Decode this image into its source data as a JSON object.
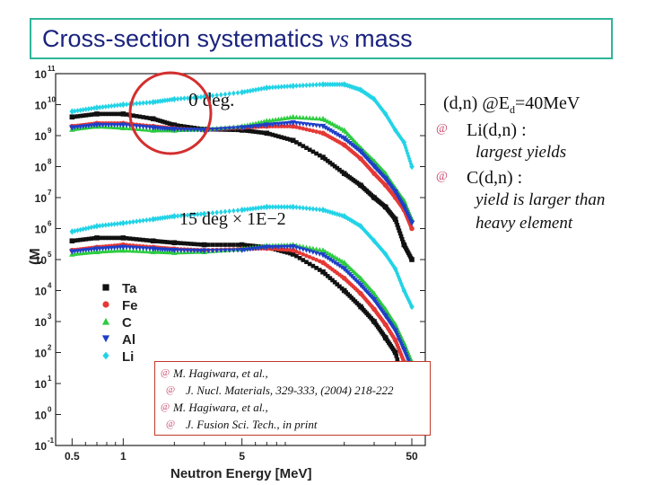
{
  "title": {
    "main": "Cross-section systematics",
    "vs": "vs",
    "tail": "mass"
  },
  "chart_data": {
    "type": "scatter",
    "xlabel": "Neutron Energy [MeV]",
    "ylabel": "(M",
    "x_scale": "log",
    "y_scale": "log",
    "xlim": [
      0.4,
      60
    ],
    "ylim": [
      0.1,
      100000000000
    ],
    "x_ticks": [
      {
        "value": 0.5,
        "label": "0.5"
      },
      {
        "value": 1,
        "label": "1"
      },
      {
        "value": 5,
        "label": "5"
      },
      {
        "value": 50,
        "label": "50"
      }
    ],
    "y_ticks": [
      {
        "exp": -1,
        "label": "10"
      },
      {
        "exp": 0,
        "label": "10"
      },
      {
        "exp": 1,
        "label": "10"
      },
      {
        "exp": 2,
        "label": "10"
      },
      {
        "exp": 3,
        "label": "10"
      },
      {
        "exp": 4,
        "label": "10"
      },
      {
        "exp": 5,
        "label": "10"
      },
      {
        "exp": 6,
        "label": "10"
      },
      {
        "exp": 7,
        "label": "10"
      },
      {
        "exp": 8,
        "label": "10"
      },
      {
        "exp": 9,
        "label": "10"
      },
      {
        "exp": 10,
        "label": "10"
      },
      {
        "exp": 11,
        "label": "10"
      }
    ],
    "annotations": [
      "0 deg.",
      "15 deg × 1E−2"
    ],
    "legend_position": "bottom-left",
    "series": [
      {
        "name": "Ta",
        "group": "0 deg.",
        "color": "#111111",
        "marker": "square",
        "x": [
          0.5,
          0.7,
          1.0,
          1.5,
          2.0,
          3.0,
          5.0,
          7.0,
          10,
          15,
          20,
          25,
          30,
          35,
          40,
          45,
          50
        ],
        "y": [
          4000000000.0,
          5000000000.0,
          5000000000.0,
          3500000000.0,
          2200000000.0,
          1600000000.0,
          1500000000.0,
          1200000000.0,
          700000000.0,
          200000000.0,
          60000000.0,
          25000000.0,
          10000000.0,
          5000000.0,
          2000000.0,
          300000.0,
          100000.0
        ]
      },
      {
        "name": "Fe",
        "group": "0 deg.",
        "color": "#e53935",
        "marker": "circle",
        "x": [
          0.5,
          0.7,
          1.0,
          1.5,
          2.0,
          3.0,
          5.0,
          7.0,
          10,
          15,
          20,
          25,
          30,
          35,
          40,
          45,
          50
        ],
        "y": [
          2000000000.0,
          2500000000.0,
          2500000000.0,
          2000000000.0,
          1700000000.0,
          1500000000.0,
          1800000000.0,
          2000000000.0,
          2000000000.0,
          1200000000.0,
          500000000.0,
          180000000.0,
          60000000.0,
          25000000.0,
          10000000.0,
          4000000.0,
          1000000.0
        ]
      },
      {
        "name": "C",
        "group": "0 deg.",
        "color": "#2ecc40",
        "marker": "triangle",
        "x": [
          0.5,
          0.7,
          1.0,
          1.5,
          2.0,
          3.0,
          5.0,
          7.0,
          10,
          15,
          20,
          25,
          30,
          35,
          40,
          45,
          50
        ],
        "y": [
          1600000000.0,
          2000000000.0,
          1800000000.0,
          1500000000.0,
          1500000000.0,
          1600000000.0,
          2000000000.0,
          3000000000.0,
          4000000000.0,
          3500000000.0,
          1500000000.0,
          400000000.0,
          150000000.0,
          60000000.0,
          20000000.0,
          8000000.0,
          2000000.0
        ]
      },
      {
        "name": "Al",
        "group": "0 deg.",
        "color": "#1e3fc8",
        "marker": "triangle-down",
        "x": [
          0.5,
          0.7,
          1.0,
          1.5,
          2.0,
          3.0,
          5.0,
          7.0,
          10,
          15,
          20,
          25,
          30,
          35,
          40,
          45,
          50
        ],
        "y": [
          1800000000.0,
          2200000000.0,
          2200000000.0,
          1800000000.0,
          1600000000.0,
          1500000000.0,
          1800000000.0,
          2200000000.0,
          2600000000.0,
          2000000000.0,
          800000000.0,
          300000000.0,
          100000000.0,
          40000000.0,
          15000000.0,
          5000000.0,
          1500000.0
        ]
      },
      {
        "name": "Li",
        "group": "0 deg.",
        "color": "#22d3e6",
        "marker": "diamond",
        "x": [
          0.5,
          0.7,
          1.0,
          1.5,
          2.0,
          3.0,
          5.0,
          7.0,
          10,
          15,
          20,
          25,
          30,
          35,
          40,
          45,
          50
        ],
        "y": [
          6000000000.0,
          8000000000.0,
          10000000000.0,
          12000000000.0,
          15000000000.0,
          18000000000.0,
          25000000000.0,
          35000000000.0,
          40000000000.0,
          45000000000.0,
          45000000000.0,
          30000000000.0,
          15000000000.0,
          5000000000.0,
          1500000000.0,
          600000000.0,
          100000000.0
        ]
      },
      {
        "name": "Ta",
        "group": "15 deg × 1E−2",
        "color": "#111111",
        "marker": "square",
        "x": [
          0.5,
          0.7,
          1.0,
          1.5,
          2.0,
          3.0,
          5.0,
          7.0,
          10,
          15,
          20,
          25,
          30,
          35,
          40,
          45,
          50
        ],
        "y": [
          400000.0,
          500000.0,
          500000.0,
          400000.0,
          350000.0,
          300000.0,
          300000.0,
          250000.0,
          150000.0,
          40000.0,
          10000.0,
          3000.0,
          1000.0,
          300.0,
          100.0,
          10.0,
          1.0
        ]
      },
      {
        "name": "Fe",
        "group": "15 deg × 1E−2",
        "color": "#e53935",
        "marker": "circle",
        "x": [
          0.5,
          0.7,
          1.0,
          1.5,
          2.0,
          3.0,
          5.0,
          7.0,
          10,
          15,
          20,
          25,
          30,
          35,
          40,
          45,
          50
        ],
        "y": [
          200000.0,
          250000.0,
          300000.0,
          250000.0,
          220000.0,
          200000.0,
          220000.0,
          230000.0,
          200000.0,
          80000.0,
          25000.0,
          8000.0,
          2500.0,
          800.0,
          250.0,
          50.0,
          10.0
        ]
      },
      {
        "name": "C",
        "group": "15 deg × 1E−2",
        "color": "#2ecc40",
        "marker": "triangle",
        "x": [
          0.5,
          0.7,
          1.0,
          1.5,
          2.0,
          3.0,
          5.0,
          7.0,
          10,
          15,
          20,
          25,
          30,
          35,
          40,
          45,
          50
        ],
        "y": [
          150000.0,
          180000.0,
          200000.0,
          180000.0,
          170000.0,
          180000.0,
          220000.0,
          280000.0,
          300000.0,
          200000.0,
          80000.0,
          25000.0,
          8000.0,
          2500.0,
          800.0,
          200.0,
          50.0
        ]
      },
      {
        "name": "Al",
        "group": "15 deg × 1E−2",
        "color": "#1e3fc8",
        "marker": "triangle-down",
        "x": [
          0.5,
          0.7,
          1.0,
          1.5,
          2.0,
          3.0,
          5.0,
          7.0,
          10,
          15,
          20,
          25,
          30,
          35,
          40,
          45,
          50
        ],
        "y": [
          180000.0,
          220000.0,
          250000.0,
          220000.0,
          200000.0,
          190000.0,
          200000.0,
          250000.0,
          260000.0,
          140000.0,
          50000.0,
          15000.0,
          5000.0,
          1500.0,
          500.0,
          120.0,
          30.0
        ]
      },
      {
        "name": "Li",
        "group": "15 deg × 1E−2",
        "color": "#22d3e6",
        "marker": "diamond",
        "x": [
          0.5,
          0.7,
          1.0,
          1.5,
          2.0,
          3.0,
          5.0,
          7.0,
          10,
          15,
          20,
          25,
          30,
          35,
          40,
          45,
          50
        ],
        "y": [
          800000.0,
          1200000.0,
          1500000.0,
          2000000.0,
          2500000.0,
          3000000.0,
          4000000.0,
          5000000.0,
          5000000.0,
          4000000.0,
          2500000.0,
          1200000.0,
          400000.0,
          150000.0,
          50000.0,
          10000.0,
          3000.0
        ]
      }
    ],
    "legend": [
      {
        "name": "Ta",
        "color": "#111111",
        "marker": "square"
      },
      {
        "name": "Fe",
        "color": "#e53935",
        "marker": "circle"
      },
      {
        "name": "C",
        "color": "#2ecc40",
        "marker": "triangle"
      },
      {
        "name": "Al",
        "color": "#1e3fc8",
        "marker": "triangle-down"
      },
      {
        "name": "Li",
        "color": "#22d3e6",
        "marker": "diamond"
      }
    ]
  },
  "notes": {
    "heading": "(d,n) @E",
    "heading_sub": "d",
    "heading_tail": "=40MeV",
    "items": [
      {
        "label": "Li(d,n) :",
        "detail": [
          "largest yields"
        ]
      },
      {
        "label": "C(d,n) :",
        "detail": [
          "yield is larger than",
          "heavy element"
        ]
      }
    ]
  },
  "references": [
    "M. Hagiwara, et al.,",
    "J. Nucl. Materials, 329-333, (2004) 218-222",
    "M. Hagiwara, et al.,",
    "J. Fusion Sci. Tech., in print"
  ],
  "colors": {
    "title_border": "#2fb59a",
    "title_text": "#1a237e",
    "highlight_circle": "#d32f2f",
    "bullet": "#cc4b6e",
    "ref_border": "#c0392b"
  }
}
